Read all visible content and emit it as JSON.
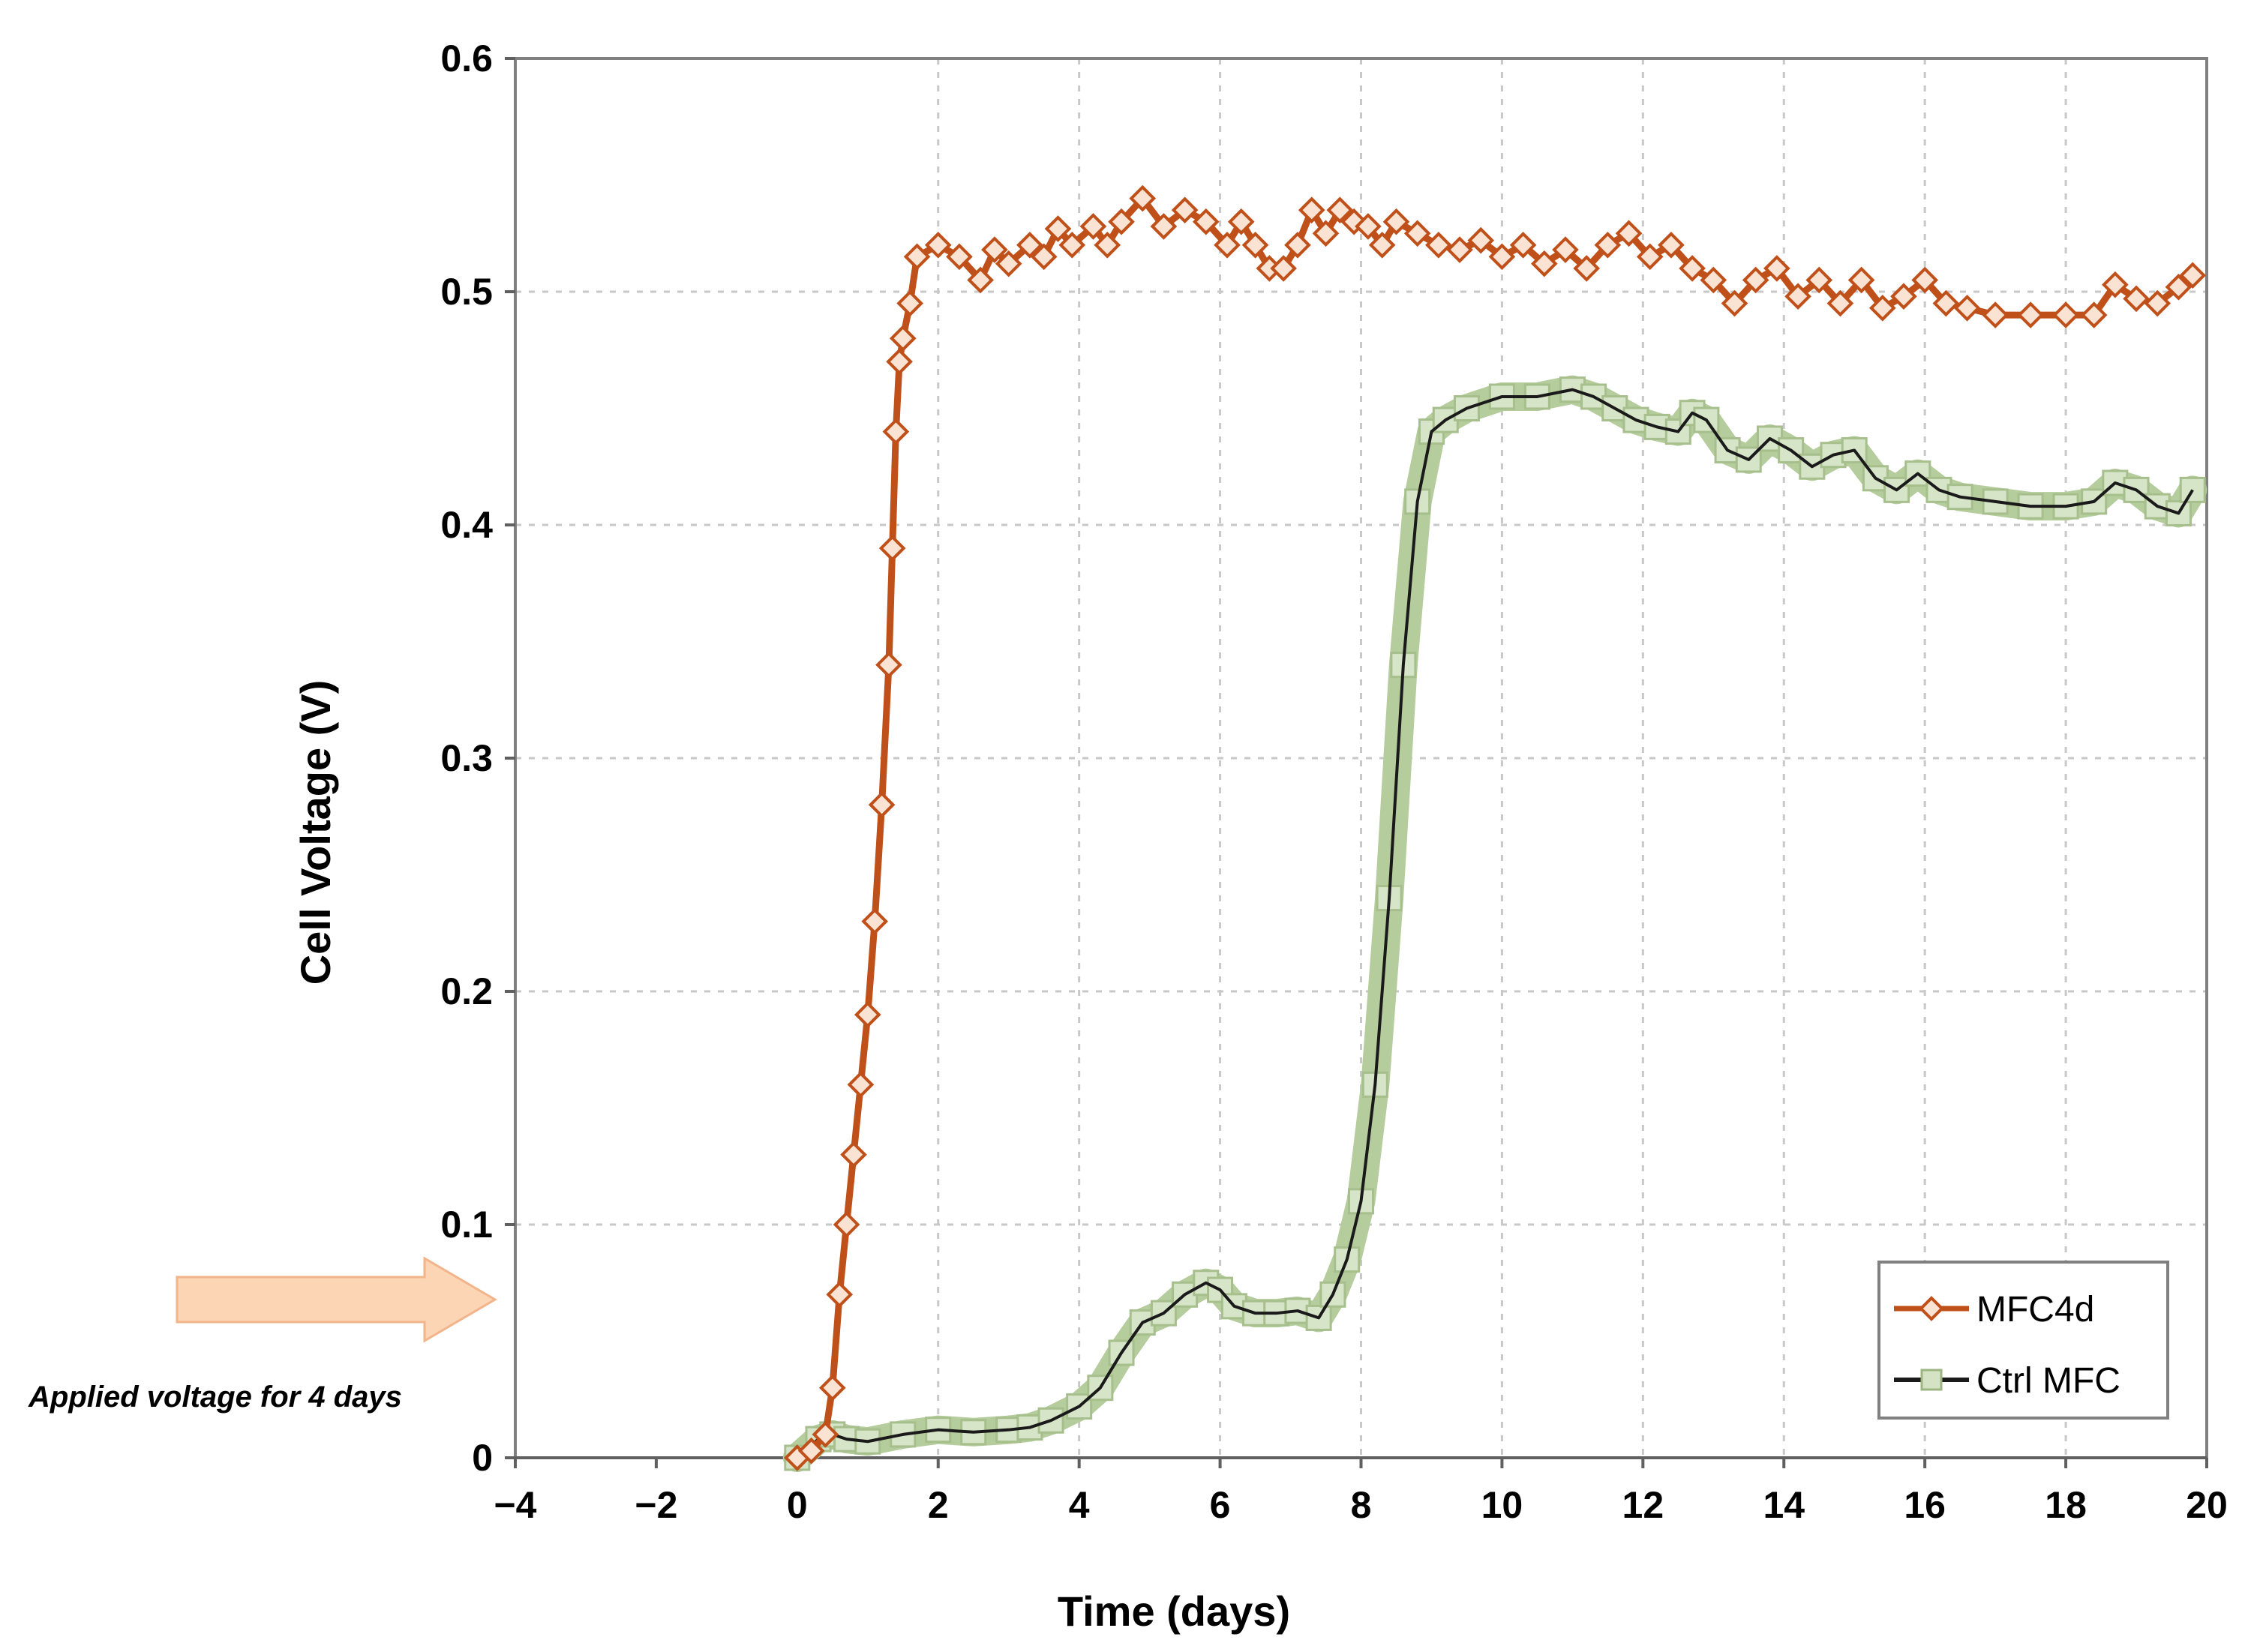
{
  "chart_data": {
    "type": "line",
    "title": "",
    "xlabel": "Time (days)",
    "ylabel": "Cell Voltage (V)",
    "xlim": [
      -4,
      20
    ],
    "ylim": [
      0,
      0.6
    ],
    "x_ticks": [
      -4,
      -2,
      0,
      2,
      4,
      6,
      8,
      10,
      12,
      14,
      16,
      18,
      20
    ],
    "y_ticks": [
      0,
      0.1,
      0.2,
      0.3,
      0.4,
      0.5,
      0.6
    ],
    "x_tick_labels": [
      "−4",
      "−2",
      "0",
      "2",
      "4",
      "6",
      "8",
      "10",
      "12",
      "14",
      "16",
      "18",
      "20"
    ],
    "y_tick_labels": [
      "0",
      "0.1",
      "0.2",
      "0.3",
      "0.4",
      "0.5",
      "0.6"
    ],
    "grid": true,
    "legend_position": "bottom-right",
    "series": [
      {
        "name": "MFC4d",
        "color": "#c0501a",
        "marker": "diamond",
        "x": [
          0,
          0.2,
          0.4,
          0.5,
          0.6,
          0.7,
          0.8,
          0.9,
          1.0,
          1.1,
          1.2,
          1.3,
          1.35,
          1.4,
          1.45,
          1.5,
          1.6,
          1.7,
          2.0,
          2.3,
          2.6,
          2.8,
          3.0,
          3.3,
          3.5,
          3.7,
          3.9,
          4.2,
          4.4,
          4.6,
          4.9,
          5.2,
          5.5,
          5.8,
          6.1,
          6.3,
          6.5,
          6.7,
          6.9,
          7.1,
          7.3,
          7.5,
          7.7,
          7.9,
          8.1,
          8.3,
          8.5,
          8.8,
          9.1,
          9.4,
          9.7,
          10.0,
          10.3,
          10.6,
          10.9,
          11.2,
          11.5,
          11.8,
          12.1,
          12.4,
          12.7,
          13.0,
          13.3,
          13.6,
          13.9,
          14.2,
          14.5,
          14.8,
          15.1,
          15.4,
          15.7,
          16.0,
          16.3,
          16.6,
          17.0,
          17.5,
          18.0,
          18.4,
          18.7,
          19.0,
          19.3,
          19.6,
          19.8
        ],
        "values": [
          0,
          0.003,
          0.01,
          0.03,
          0.07,
          0.1,
          0.13,
          0.16,
          0.19,
          0.23,
          0.28,
          0.34,
          0.39,
          0.44,
          0.47,
          0.48,
          0.495,
          0.515,
          0.52,
          0.515,
          0.505,
          0.518,
          0.512,
          0.52,
          0.515,
          0.527,
          0.52,
          0.528,
          0.52,
          0.53,
          0.54,
          0.528,
          0.535,
          0.53,
          0.52,
          0.53,
          0.52,
          0.51,
          0.51,
          0.52,
          0.535,
          0.525,
          0.535,
          0.53,
          0.528,
          0.52,
          0.53,
          0.525,
          0.52,
          0.518,
          0.522,
          0.515,
          0.52,
          0.512,
          0.518,
          0.51,
          0.52,
          0.525,
          0.515,
          0.52,
          0.51,
          0.505,
          0.495,
          0.505,
          0.51,
          0.498,
          0.505,
          0.495,
          0.505,
          0.493,
          0.498,
          0.505,
          0.495,
          0.493,
          0.49,
          0.49,
          0.49,
          0.49,
          0.503,
          0.497,
          0.495,
          0.502,
          0.507
        ]
      },
      {
        "name": "Ctrl MFC",
        "color": "#b5cc9c",
        "line_color": "#1a1a1a",
        "marker": "square",
        "x": [
          0,
          0.3,
          0.5,
          0.7,
          1.0,
          1.5,
          2.0,
          2.5,
          3.0,
          3.3,
          3.6,
          4.0,
          4.3,
          4.6,
          4.9,
          5.2,
          5.5,
          5.8,
          6.0,
          6.2,
          6.5,
          6.8,
          7.1,
          7.4,
          7.6,
          7.8,
          8.0,
          8.2,
          8.4,
          8.6,
          8.8,
          9.0,
          9.2,
          9.5,
          10.0,
          10.5,
          11.0,
          11.3,
          11.6,
          11.9,
          12.2,
          12.5,
          12.7,
          12.9,
          13.2,
          13.5,
          13.8,
          14.1,
          14.4,
          14.7,
          15.0,
          15.3,
          15.6,
          15.9,
          16.2,
          16.5,
          17.0,
          17.5,
          18.0,
          18.4,
          18.7,
          19.0,
          19.3,
          19.6,
          19.8
        ],
        "values": [
          0,
          0.008,
          0.01,
          0.008,
          0.007,
          0.01,
          0.012,
          0.011,
          0.012,
          0.013,
          0.016,
          0.022,
          0.03,
          0.045,
          0.058,
          0.062,
          0.07,
          0.075,
          0.072,
          0.065,
          0.062,
          0.062,
          0.063,
          0.06,
          0.07,
          0.085,
          0.11,
          0.16,
          0.24,
          0.34,
          0.41,
          0.44,
          0.445,
          0.45,
          0.455,
          0.455,
          0.458,
          0.455,
          0.45,
          0.445,
          0.442,
          0.44,
          0.448,
          0.445,
          0.432,
          0.428,
          0.437,
          0.432,
          0.425,
          0.43,
          0.432,
          0.42,
          0.415,
          0.422,
          0.415,
          0.412,
          0.41,
          0.408,
          0.408,
          0.41,
          0.418,
          0.415,
          0.408,
          0.405,
          0.415
        ]
      }
    ],
    "annotation": {
      "text": "Applied voltage for 4 days",
      "arrow_color": "#fcd5b5",
      "arrow_edge": "#f2b48a"
    }
  }
}
